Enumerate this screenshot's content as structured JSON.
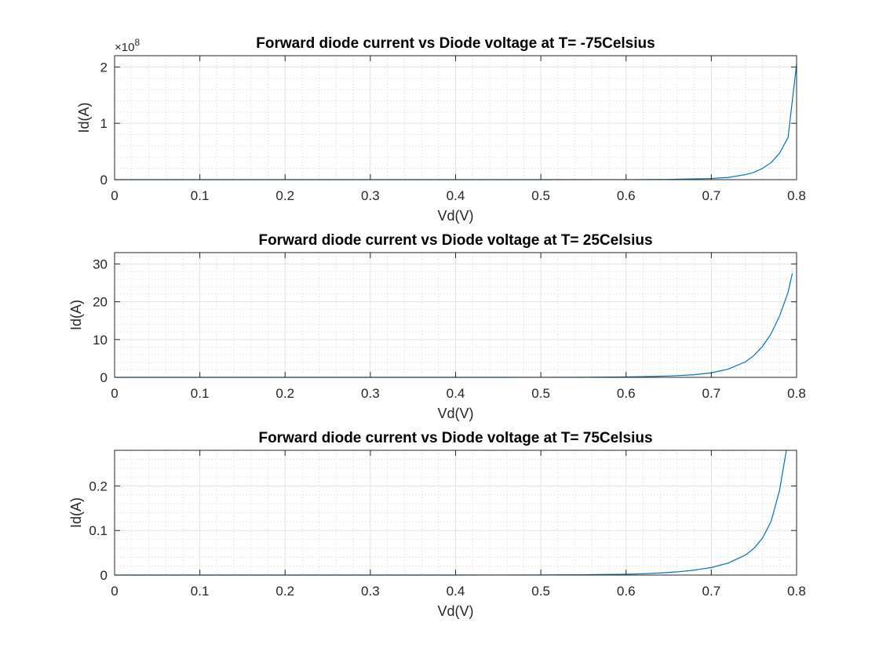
{
  "chart_data": [
    {
      "type": "line",
      "title": "Forward diode current vs Diode voltage at T= -75Celsius",
      "xlabel": "Vd(V)",
      "ylabel": "Id(A)",
      "xlim": [
        0,
        0.8
      ],
      "ylim": [
        0,
        2.2
      ],
      "y_exponent_label": "×10",
      "y_exponent": "8",
      "xticks": [
        "0",
        "0.1",
        "0.2",
        "0.3",
        "0.4",
        "0.5",
        "0.6",
        "0.7",
        "0.8"
      ],
      "yticks": [
        {
          "value": 0,
          "label": "0"
        },
        {
          "value": 1,
          "label": "1"
        },
        {
          "value": 2,
          "label": "2"
        }
      ],
      "grid": true,
      "minor_grid": true,
      "series": [
        {
          "color": "#0072BD",
          "x": [
            0,
            0.1,
            0.2,
            0.3,
            0.4,
            0.5,
            0.6,
            0.65,
            0.7,
            0.72,
            0.74,
            0.75,
            0.76,
            0.77,
            0.78,
            0.79,
            0.8
          ],
          "y": [
            0,
            0,
            0,
            0,
            0,
            0,
            0.001,
            0.004,
            0.02,
            0.04,
            0.09,
            0.13,
            0.2,
            0.3,
            0.47,
            0.75,
            2.05
          ]
        }
      ]
    },
    {
      "type": "line",
      "title": "Forward diode current vs Diode voltage at T= 25Celsius",
      "xlabel": "Vd(V)",
      "ylabel": "Id(A)",
      "xlim": [
        0,
        0.8
      ],
      "ylim": [
        0,
        33
      ],
      "xticks": [
        "0",
        "0.1",
        "0.2",
        "0.3",
        "0.4",
        "0.5",
        "0.6",
        "0.7",
        "0.8"
      ],
      "yticks": [
        {
          "value": 0,
          "label": "0"
        },
        {
          "value": 10,
          "label": "10"
        },
        {
          "value": 20,
          "label": "20"
        },
        {
          "value": 30,
          "label": "30"
        }
      ],
      "grid": true,
      "minor_grid": true,
      "series": [
        {
          "color": "#0072BD",
          "x": [
            0,
            0.1,
            0.2,
            0.3,
            0.4,
            0.5,
            0.55,
            0.6,
            0.62,
            0.64,
            0.66,
            0.68,
            0.7,
            0.72,
            0.74,
            0.75,
            0.76,
            0.77,
            0.78,
            0.79,
            0.795
          ],
          "y": [
            0,
            0,
            0,
            0,
            0,
            0.01,
            0.03,
            0.12,
            0.2,
            0.3,
            0.45,
            0.7,
            1.2,
            2.2,
            4.1,
            5.8,
            8.2,
            11.5,
            16.2,
            22.5,
            27.5
          ]
        }
      ]
    },
    {
      "type": "line",
      "title": "Forward diode current vs Diode voltage at T= 75Celsius",
      "xlabel": "Vd(V)",
      "ylabel": "Id(A)",
      "xlim": [
        0,
        0.8
      ],
      "ylim": [
        0,
        0.28
      ],
      "xticks": [
        "0",
        "0.1",
        "0.2",
        "0.3",
        "0.4",
        "0.5",
        "0.6",
        "0.7",
        "0.8"
      ],
      "yticks": [
        {
          "value": 0,
          "label": "0"
        },
        {
          "value": 0.1,
          "label": "0.1"
        },
        {
          "value": 0.2,
          "label": "0.2"
        }
      ],
      "grid": true,
      "minor_grid": true,
      "series": [
        {
          "color": "#0072BD",
          "x": [
            0,
            0.1,
            0.2,
            0.3,
            0.4,
            0.5,
            0.55,
            0.6,
            0.62,
            0.64,
            0.66,
            0.68,
            0.7,
            0.72,
            0.74,
            0.75,
            0.76,
            0.77,
            0.78,
            0.788
          ],
          "y": [
            0,
            0,
            0,
            0,
            0,
            0.0003,
            0.0007,
            0.0019,
            0.003,
            0.0046,
            0.0072,
            0.011,
            0.017,
            0.027,
            0.045,
            0.06,
            0.083,
            0.12,
            0.19,
            0.28
          ]
        }
      ]
    }
  ]
}
